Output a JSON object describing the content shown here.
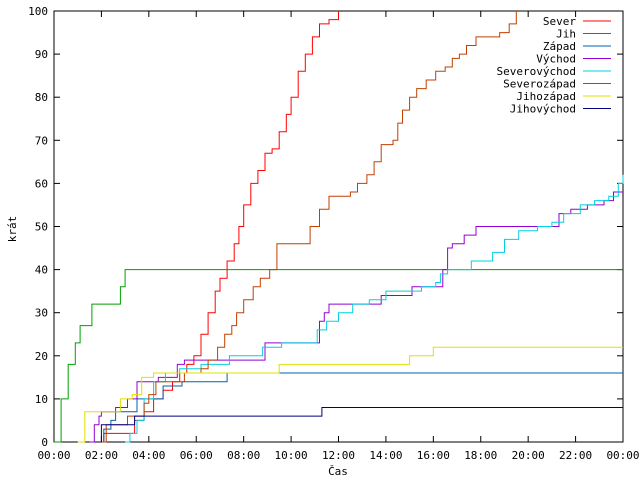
{
  "chart_data": {
    "type": "line",
    "title": "",
    "xlabel": "Čas",
    "ylabel": "krát",
    "xlim": [
      0,
      24
    ],
    "ylim": [
      0,
      100
    ],
    "x_ticks": [
      {
        "v": 0,
        "label": "00:00"
      },
      {
        "v": 2,
        "label": "02:00"
      },
      {
        "v": 4,
        "label": "04:00"
      },
      {
        "v": 6,
        "label": "06:00"
      },
      {
        "v": 8,
        "label": "08:00"
      },
      {
        "v": 10,
        "label": "10:00"
      },
      {
        "v": 12,
        "label": "12:00"
      },
      {
        "v": 14,
        "label": "14:00"
      },
      {
        "v": 16,
        "label": "16:00"
      },
      {
        "v": 18,
        "label": "18:00"
      },
      {
        "v": 20,
        "label": "20:00"
      },
      {
        "v": 22,
        "label": "22:00"
      },
      {
        "v": 24,
        "label": "00:00"
      }
    ],
    "y_ticks": [
      {
        "v": 0,
        "label": "0"
      },
      {
        "v": 10,
        "label": "10"
      },
      {
        "v": 20,
        "label": "20"
      },
      {
        "v": 30,
        "label": "30"
      },
      {
        "v": 40,
        "label": "40"
      },
      {
        "v": 50,
        "label": "50"
      },
      {
        "v": 60,
        "label": "60"
      },
      {
        "v": 70,
        "label": "70"
      },
      {
        "v": 80,
        "label": "80"
      },
      {
        "v": 90,
        "label": "90"
      },
      {
        "v": 100,
        "label": "100"
      }
    ],
    "grid": false,
    "legend_position": "top-right",
    "series": [
      {
        "name": "Sever",
        "color": "#ff0000",
        "points": [
          [
            1.9,
            0
          ],
          [
            2.1,
            2
          ],
          [
            3.3,
            2
          ],
          [
            3.4,
            5
          ],
          [
            3.8,
            7
          ],
          [
            4.2,
            10
          ],
          [
            4.6,
            12
          ],
          [
            5.0,
            14
          ],
          [
            5.3,
            16
          ],
          [
            5.6,
            18
          ],
          [
            5.9,
            20
          ],
          [
            6.2,
            25
          ],
          [
            6.5,
            30
          ],
          [
            6.8,
            35
          ],
          [
            7.0,
            38
          ],
          [
            7.3,
            42
          ],
          [
            7.6,
            46
          ],
          [
            7.8,
            50
          ],
          [
            8.0,
            55
          ],
          [
            8.3,
            60
          ],
          [
            8.6,
            63
          ],
          [
            8.9,
            67
          ],
          [
            9.2,
            68
          ],
          [
            9.5,
            72
          ],
          [
            9.8,
            76
          ],
          [
            10.0,
            80
          ],
          [
            10.3,
            86
          ],
          [
            10.6,
            90
          ],
          [
            10.9,
            94
          ],
          [
            11.2,
            97
          ],
          [
            11.6,
            98
          ],
          [
            12.0,
            100
          ]
        ]
      },
      {
        "name": "Jih",
        "color": "#00a000",
        "points": [
          [
            0.0,
            0
          ],
          [
            0.3,
            10
          ],
          [
            0.6,
            18
          ],
          [
            0.9,
            23
          ],
          [
            1.1,
            27
          ],
          [
            1.4,
            27
          ],
          [
            1.6,
            32
          ],
          [
            2.5,
            32
          ],
          [
            2.8,
            36
          ],
          [
            3.0,
            40
          ],
          [
            24,
            40
          ]
        ]
      },
      {
        "name": "Západ",
        "color": "#0060ad",
        "points": [
          [
            1.9,
            0
          ],
          [
            2.1,
            3
          ],
          [
            2.4,
            5
          ],
          [
            2.6,
            7
          ],
          [
            3.3,
            7
          ],
          [
            3.5,
            10
          ],
          [
            4.3,
            10
          ],
          [
            4.6,
            13
          ],
          [
            5.4,
            14
          ],
          [
            7.2,
            14
          ],
          [
            7.3,
            16
          ],
          [
            24,
            16
          ]
        ]
      },
      {
        "name": "Východ",
        "color": "#9400d3",
        "points": [
          [
            1.5,
            0
          ],
          [
            1.7,
            4
          ],
          [
            1.9,
            6
          ],
          [
            2.0,
            7
          ],
          [
            2.6,
            8
          ],
          [
            3.1,
            10
          ],
          [
            3.5,
            14
          ],
          [
            4.4,
            15
          ],
          [
            4.9,
            15
          ],
          [
            5.2,
            18
          ],
          [
            5.5,
            19
          ],
          [
            8.7,
            19
          ],
          [
            8.9,
            23
          ],
          [
            11.0,
            23
          ],
          [
            11.2,
            28
          ],
          [
            11.4,
            30
          ],
          [
            11.6,
            32
          ],
          [
            13.6,
            32
          ],
          [
            13.8,
            34
          ],
          [
            14.9,
            34
          ],
          [
            15.1,
            36
          ],
          [
            16.2,
            36
          ],
          [
            16.4,
            40
          ],
          [
            16.6,
            45
          ],
          [
            16.8,
            46
          ],
          [
            17.3,
            48
          ],
          [
            17.8,
            50
          ],
          [
            21.0,
            50
          ],
          [
            21.3,
            53
          ],
          [
            21.8,
            54
          ],
          [
            22.5,
            55
          ],
          [
            23.2,
            56
          ],
          [
            23.6,
            58
          ],
          [
            24,
            58
          ]
        ]
      },
      {
        "name": "Severovýchod",
        "color": "#00d0e0",
        "points": [
          [
            3.0,
            0
          ],
          [
            3.2,
            2
          ],
          [
            3.5,
            5
          ],
          [
            3.8,
            10
          ],
          [
            4.2,
            14
          ],
          [
            4.7,
            16
          ],
          [
            5.3,
            17
          ],
          [
            6.2,
            18
          ],
          [
            7.0,
            18
          ],
          [
            7.4,
            20
          ],
          [
            8.6,
            20
          ],
          [
            8.8,
            22
          ],
          [
            9.3,
            22
          ],
          [
            9.6,
            23
          ],
          [
            10.8,
            23
          ],
          [
            11.1,
            26
          ],
          [
            11.5,
            28
          ],
          [
            12.0,
            30
          ],
          [
            12.6,
            32
          ],
          [
            13.3,
            33
          ],
          [
            14.0,
            35
          ],
          [
            15.5,
            36
          ],
          [
            16.1,
            37
          ],
          [
            16.3,
            39
          ],
          [
            16.6,
            40
          ],
          [
            17.3,
            40
          ],
          [
            17.6,
            42
          ],
          [
            18.5,
            44
          ],
          [
            19.0,
            47
          ],
          [
            19.6,
            49
          ],
          [
            20.4,
            50
          ],
          [
            21.0,
            51
          ],
          [
            21.5,
            53
          ],
          [
            22.2,
            55
          ],
          [
            22.8,
            56
          ],
          [
            23.4,
            57
          ],
          [
            23.8,
            60
          ],
          [
            24,
            62
          ]
        ]
      },
      {
        "name": "Severozápad",
        "color": "#c04000",
        "points": [
          [
            2.0,
            0
          ],
          [
            2.2,
            4
          ],
          [
            3.1,
            6
          ],
          [
            3.8,
            9
          ],
          [
            4.0,
            11
          ],
          [
            4.3,
            14
          ],
          [
            5.0,
            14
          ],
          [
            5.5,
            16
          ],
          [
            6.2,
            17
          ],
          [
            6.5,
            19
          ],
          [
            6.9,
            22
          ],
          [
            7.2,
            25
          ],
          [
            7.5,
            27
          ],
          [
            7.7,
            30
          ],
          [
            8.0,
            33
          ],
          [
            8.4,
            36
          ],
          [
            8.7,
            38
          ],
          [
            9.1,
            40
          ],
          [
            9.4,
            46
          ],
          [
            10.6,
            46
          ],
          [
            10.8,
            50
          ],
          [
            11.2,
            54
          ],
          [
            11.6,
            57
          ],
          [
            12.5,
            58
          ],
          [
            12.8,
            60
          ],
          [
            13.2,
            62
          ],
          [
            13.5,
            65
          ],
          [
            13.8,
            69
          ],
          [
            14.3,
            70
          ],
          [
            14.5,
            74
          ],
          [
            14.7,
            77
          ],
          [
            15.0,
            80
          ],
          [
            15.3,
            82
          ],
          [
            15.7,
            84
          ],
          [
            16.1,
            86
          ],
          [
            16.5,
            87
          ],
          [
            16.8,
            89
          ],
          [
            17.1,
            90
          ],
          [
            17.4,
            92
          ],
          [
            17.8,
            94
          ],
          [
            18.8,
            95
          ],
          [
            19.2,
            97
          ],
          [
            19.5,
            100
          ]
        ]
      },
      {
        "name": "Jihozápad",
        "color": "#e0e000",
        "points": [
          [
            1.0,
            0
          ],
          [
            1.3,
            7
          ],
          [
            2.5,
            7
          ],
          [
            2.8,
            10
          ],
          [
            3.3,
            11
          ],
          [
            3.7,
            15
          ],
          [
            4.2,
            16
          ],
          [
            9.4,
            16
          ],
          [
            9.5,
            18
          ],
          [
            14.8,
            18
          ],
          [
            15.0,
            20
          ],
          [
            15.5,
            20
          ],
          [
            16.0,
            22
          ],
          [
            24,
            22
          ]
        ]
      },
      {
        "name": "Jihovýchod",
        "color": "#000080",
        "points": [
          [
            1.9,
            0
          ],
          [
            2.0,
            4
          ],
          [
            3.2,
            4
          ],
          [
            3.4,
            6
          ],
          [
            11.1,
            6
          ],
          [
            11.3,
            8
          ],
          [
            24,
            8
          ]
        ]
      }
    ]
  }
}
